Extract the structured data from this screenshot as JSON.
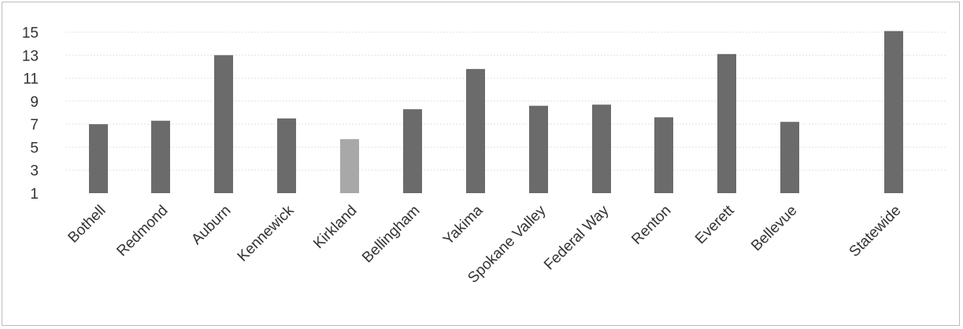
{
  "chart_data": {
    "type": "bar",
    "categories": [
      "Bothell",
      "Redmond",
      "Auburn",
      "Kennewick",
      "Kirkland",
      "Bellingham",
      "Yakima",
      "Spokane Valley",
      "Federal Way",
      "Renton",
      "Everett",
      "Bellevue",
      "Statewide"
    ],
    "values": [
      7.0,
      7.3,
      13.0,
      7.5,
      5.7,
      8.3,
      11.8,
      8.6,
      8.7,
      7.6,
      13.1,
      7.2,
      15.1
    ],
    "highlight_category": "Kirkland",
    "ylim": [
      1,
      15
    ],
    "yticks": [
      1,
      3,
      5,
      7,
      9,
      11,
      13,
      15
    ],
    "grid": true,
    "colors": {
      "bar": "#6b6b6b",
      "highlight": "#a8a8a8",
      "grid": "#e2e2e2",
      "text": "#333333"
    }
  }
}
